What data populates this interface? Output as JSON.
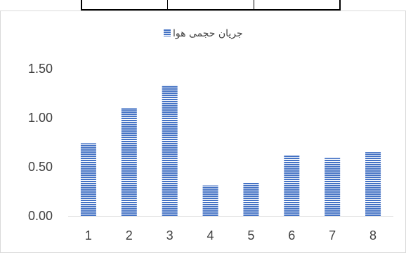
{
  "chart_data": {
    "type": "bar",
    "categories": [
      "1",
      "2",
      "3",
      "4",
      "5",
      "6",
      "7",
      "8"
    ],
    "series": [
      {
        "name": "جریان حجمی هوا",
        "values": [
          0.74,
          1.1,
          1.33,
          0.31,
          0.34,
          0.62,
          0.59,
          0.65
        ]
      }
    ],
    "ylim": [
      0,
      1.5
    ],
    "yticks": [
      "0.00",
      "0.50",
      "1.00",
      "1.50"
    ],
    "grid": false,
    "legend": "top-center",
    "bar_color": "#4472C4",
    "bar_stripe_color": "#ffffff"
  }
}
